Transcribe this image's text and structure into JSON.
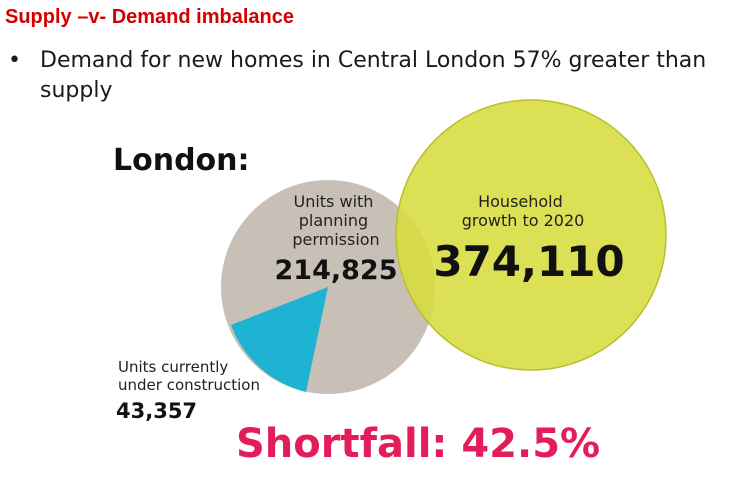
{
  "title": "Supply –v- Demand imbalance",
  "bullet": {
    "marker": "•",
    "text": "Demand for new homes in Central London 57% greater than supply"
  },
  "diagram": {
    "heading": "London:",
    "planning": {
      "label_lines": [
        "Units with",
        "planning",
        "permission"
      ],
      "value": "214,825"
    },
    "household": {
      "label_lines": [
        "Household",
        "growth to 2020"
      ],
      "value": "374,110"
    },
    "construction": {
      "label_lines": [
        "Units currently",
        "under construction"
      ],
      "value": "43,357"
    },
    "shortfall": "Shortfall: 42.5%"
  },
  "colors": {
    "title": "#d40000",
    "gray_circle": "#c8c0b6",
    "yellow_circle": "#d7dc3e",
    "yellow_stroke": "#b9bf2a",
    "cyan_slice": "#1eb3d2",
    "shortfall": "#e31d5a"
  }
}
